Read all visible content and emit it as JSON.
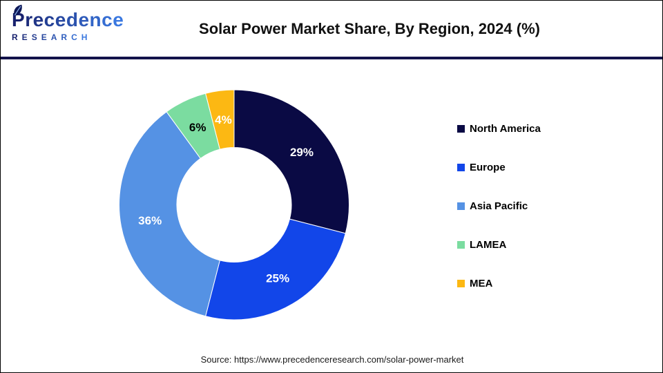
{
  "header": {
    "logo": {
      "brand": "Precedence",
      "subtext": "RESEARCH"
    },
    "title": "Solar Power Market Share, By Region, 2024 (%)"
  },
  "chart_data": {
    "type": "pie",
    "subtype": "donut",
    "title": "Solar Power Market Share, By Region, 2024 (%)",
    "unit": "%",
    "direction": "clockwise",
    "start_angle_deg": 0,
    "donut_hole_ratio": 0.5,
    "legend_position": "right",
    "series": [
      {
        "name": "North America",
        "value": 29,
        "label": "29%",
        "color": "#0a0a44",
        "label_color": "#ffffff"
      },
      {
        "name": "Europe",
        "value": 25,
        "label": "25%",
        "color": "#1246e9",
        "label_color": "#ffffff"
      },
      {
        "name": "Asia Pacific",
        "value": 36,
        "label": "36%",
        "color": "#5592e4",
        "label_color": "#ffffff"
      },
      {
        "name": "LAMEA",
        "value": 6,
        "label": "6%",
        "color": "#7bdca0",
        "label_color": "#000000"
      },
      {
        "name": "MEA",
        "value": 4,
        "label": "4%",
        "color": "#fcb813",
        "label_color": "#ffffff"
      }
    ]
  },
  "footer": {
    "source": "Source: https://www.precedenceresearch.com/solar-power-market"
  },
  "colors": {
    "divider": "#12124a",
    "canvas_border": "#000000",
    "logo_dark": "#18226e",
    "logo_light": "#3a78e0",
    "leaf": "#0e1858"
  }
}
